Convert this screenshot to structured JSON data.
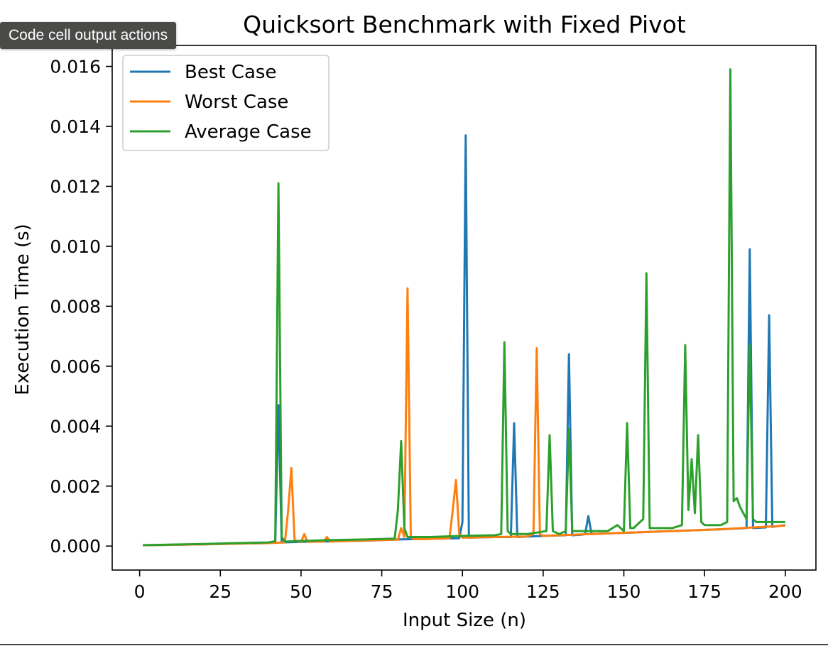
{
  "tooltip": {
    "label": "Code cell output actions"
  },
  "chart_data": {
    "type": "line",
    "title": "Quicksort Benchmark with Fixed Pivot",
    "xlabel": "Input Size (n)",
    "ylabel": "Execution Time (s)",
    "xlim": [
      -8.5,
      209.5
    ],
    "ylim": [
      -0.0008,
      0.0167
    ],
    "xticks": [
      0,
      25,
      50,
      75,
      100,
      125,
      150,
      175,
      200
    ],
    "xtick_labels": [
      "0",
      "25",
      "50",
      "75",
      "100",
      "125",
      "150",
      "175",
      "200"
    ],
    "yticks": [
      0,
      0.002,
      0.004,
      0.006,
      0.008,
      0.01,
      0.012,
      0.014,
      0.016
    ],
    "ytick_labels": [
      "0.000",
      "0.002",
      "0.004",
      "0.006",
      "0.008",
      "0.010",
      "0.012",
      "0.014",
      "0.016"
    ],
    "grid": false,
    "legend_position": "upper-left",
    "series": [
      {
        "name": "Best Case",
        "color": "#1f77b4",
        "x": [
          1,
          10,
          20,
          30,
          40,
          42,
          43,
          44,
          50,
          60,
          70,
          80,
          99,
          100,
          101,
          102,
          110,
          115,
          116,
          117,
          125,
          132,
          133,
          134,
          137,
          138,
          139,
          140,
          150,
          160,
          170,
          180,
          188,
          189,
          190,
          194,
          195,
          196,
          200
        ],
        "y": [
          3e-05,
          4e-05,
          6e-05,
          8e-05,
          0.0001,
          0.00012,
          0.0047,
          0.00012,
          0.00014,
          0.00016,
          0.00018,
          0.00022,
          0.00026,
          0.0008,
          0.0137,
          0.00028,
          0.0003,
          0.0003,
          0.0041,
          0.0003,
          0.00034,
          0.00036,
          0.0064,
          0.00036,
          0.00038,
          0.0004,
          0.001,
          0.0004,
          0.00044,
          0.00048,
          0.00052,
          0.00056,
          0.0006,
          0.0099,
          0.0006,
          0.00062,
          0.0077,
          0.00064,
          0.0007
        ]
      },
      {
        "name": "Worst Case",
        "color": "#ff7f0e",
        "x": [
          1,
          10,
          20,
          30,
          40,
          45,
          46,
          47,
          48,
          50,
          51,
          52,
          57,
          58,
          59,
          65,
          75,
          80,
          81,
          82,
          83,
          84,
          85,
          90,
          96,
          97,
          98,
          99,
          100,
          110,
          120,
          122,
          123,
          124,
          125,
          140,
          160,
          180,
          200
        ],
        "y": [
          3e-05,
          4e-05,
          6e-05,
          8e-05,
          0.0001,
          0.00012,
          0.0012,
          0.0026,
          0.0002,
          0.00013,
          0.0004,
          0.00014,
          0.00015,
          0.0003,
          0.00015,
          0.00017,
          0.0002,
          0.00021,
          0.0006,
          0.0003,
          0.0086,
          0.0003,
          0.00023,
          0.00024,
          0.00026,
          0.0012,
          0.0022,
          0.0004,
          0.00028,
          0.0003,
          0.00032,
          0.0004,
          0.0066,
          0.0004,
          0.00034,
          0.0004,
          0.00048,
          0.00056,
          0.00068
        ]
      },
      {
        "name": "Average Case",
        "color": "#2ca02c",
        "x": [
          1,
          10,
          20,
          30,
          40,
          42,
          43,
          44,
          45,
          50,
          60,
          70,
          79,
          80,
          81,
          82,
          83,
          90,
          100,
          110,
          112,
          113,
          114,
          115,
          120,
          126,
          127,
          128,
          130,
          132,
          133,
          134,
          140,
          145,
          148,
          150,
          151,
          152,
          153,
          155,
          156,
          157,
          158,
          160,
          165,
          168,
          169,
          170,
          171,
          172,
          173,
          174,
          175,
          180,
          182,
          183,
          184,
          185,
          186,
          187,
          188,
          189,
          190,
          191,
          195,
          200
        ],
        "y": [
          3e-05,
          5e-05,
          7e-05,
          0.0001,
          0.00012,
          0.00016,
          0.0121,
          0.0003,
          0.00015,
          0.00017,
          0.0002,
          0.00022,
          0.00025,
          0.0012,
          0.0035,
          0.0006,
          0.0003,
          0.0003,
          0.00034,
          0.00036,
          0.0004,
          0.0068,
          0.0005,
          0.0004,
          0.0004,
          0.0005,
          0.0037,
          0.0005,
          0.0004,
          0.0005,
          0.0039,
          0.0005,
          0.0005,
          0.0005,
          0.0007,
          0.0005,
          0.0041,
          0.0006,
          0.0006,
          0.0008,
          0.0009,
          0.0091,
          0.0006,
          0.0006,
          0.0006,
          0.0007,
          0.0067,
          0.0012,
          0.0029,
          0.0011,
          0.0037,
          0.0008,
          0.0007,
          0.0007,
          0.0008,
          0.0159,
          0.0015,
          0.0016,
          0.0013,
          0.0011,
          0.0009,
          0.0067,
          0.0009,
          0.0008,
          0.0008,
          0.0008
        ]
      }
    ]
  }
}
